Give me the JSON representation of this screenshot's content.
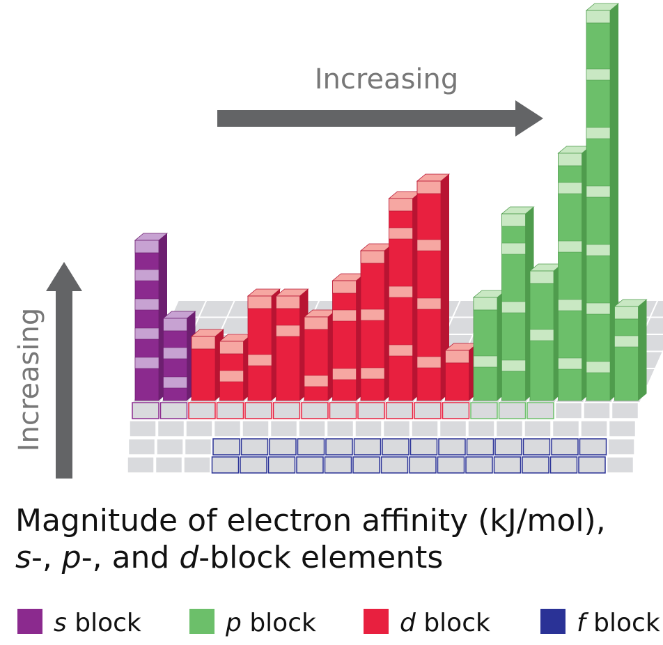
{
  "arrows": {
    "horizontal_label": "Increasing",
    "vertical_label": "Increasing"
  },
  "title": {
    "line1": "Magnitude of electron affinity (kJ/mol),",
    "line2": [
      {
        "text": "s",
        "italic": true
      },
      {
        "text": "-, ",
        "italic": false
      },
      {
        "text": "p",
        "italic": true
      },
      {
        "text": "-, and ",
        "italic": false
      },
      {
        "text": "d",
        "italic": true
      },
      {
        "text": "-block elements",
        "italic": false
      }
    ]
  },
  "legend": [
    {
      "letter": "s",
      "text": "block",
      "color": "#8b2a8e"
    },
    {
      "letter": "p",
      "text": "block",
      "color": "#6cbf6a"
    },
    {
      "letter": "d",
      "text": "block",
      "color": "#e8203f"
    },
    {
      "letter": "f",
      "text": "block",
      "color": "#2a3296"
    }
  ]
}
